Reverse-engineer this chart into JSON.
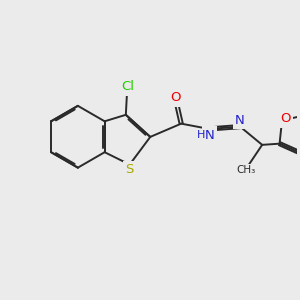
{
  "bg_color": "#ebebeb",
  "bond_color": "#2a2a2a",
  "bond_width": 1.4,
  "atom_colors": {
    "Cl": "#22cc00",
    "S": "#aaaa00",
    "O": "#ee0000",
    "N": "#2222cc",
    "C": "#2a2a2a"
  },
  "font_size": 9.5,
  "font_size_small": 8.0,
  "dbo": 0.055
}
